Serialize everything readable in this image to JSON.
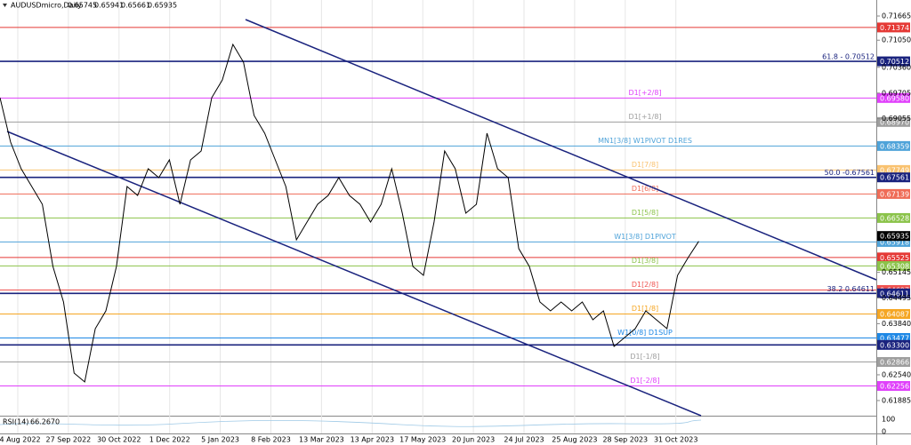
{
  "chart_data": {
    "type": "line",
    "header": {
      "symbol": "AUDUSDmicro,Daily",
      "open": 0.65745,
      "high": 0.65941,
      "low": 0.65661,
      "close": 0.65935
    },
    "series": [
      {
        "color": "#000000",
        "values": [
          0.69587,
          0.68457,
          0.6778,
          0.67328,
          0.66876,
          0.65295,
          0.64391,
          0.62584,
          0.62358,
          0.63714,
          0.64166,
          0.65295,
          0.67328,
          0.67102,
          0.6778,
          0.67554,
          0.68006,
          0.66876,
          0.68006,
          0.68232,
          0.69587,
          0.70039,
          0.70942,
          0.7049,
          0.69135,
          0.68683,
          0.68006,
          0.67328,
          0.65973,
          0.66425,
          0.66876,
          0.67102,
          0.67554,
          0.67102,
          0.66876,
          0.66425,
          0.66876,
          0.6778,
          0.6665,
          0.65295,
          0.65069,
          0.66425,
          0.68232,
          0.6778,
          0.6665,
          0.66876,
          0.68683,
          0.6778,
          0.67554,
          0.6575,
          0.65295,
          0.64391,
          0.64166,
          0.64391,
          0.64166,
          0.64391,
          0.6394,
          0.64166,
          0.63262,
          0.63488,
          0.63714,
          0.64166,
          0.6394,
          0.63714,
          0.65069,
          0.65521,
          0.65935
        ]
      }
    ],
    "date_labels": [
      "24 Aug 2022",
      "27 Sep 2022",
      "30 Oct 2022",
      "1 Dec 2022",
      "5 Jan 2023",
      "8 Feb 2023",
      "13 Mar 2023",
      "13 Apr 2023",
      "17 May 2023",
      "20 Jun 2023",
      "24 Jul 2023",
      "25 Aug 2023",
      "28 Sep 2023",
      "31 Oct 2023"
    ],
    "ylim": [
      0.615,
      0.72072
    ],
    "yticks": [
      {
        "value": 0.71665,
        "label": "0.71665"
      },
      {
        "value": 0.7105,
        "label": "0.71050"
      },
      {
        "value": 0.7036,
        "label": "0.70360"
      },
      {
        "value": 0.69705,
        "label": "0.69705"
      },
      {
        "value": 0.69055,
        "label": "0.69055"
      },
      {
        "value": 0.65145,
        "label": "0.65145"
      },
      {
        "value": 0.64495,
        "label": "0.64495"
      },
      {
        "value": 0.6384,
        "label": "0.63840"
      },
      {
        "value": 0.6254,
        "label": "0.62540"
      },
      {
        "value": 0.61885,
        "label": "0.61885"
      }
    ],
    "levels": [
      {
        "price": 0.71374,
        "price_label": "0.71374",
        "color": "#e53935"
      },
      {
        "price": 0.70512,
        "price_label": "0.70512",
        "color": "#1a237e",
        "text": "61.8 - 0.70512"
      },
      {
        "price": 0.6958,
        "price_label": "0.69580",
        "color": "#e040fb",
        "text": "D1[+2/8]"
      },
      {
        "price": 0.6897,
        "price_label": "0.68970",
        "color": "#9e9e9e",
        "text": "D1[+1/8]"
      },
      {
        "price": 0.68359,
        "price_label": "0.68359",
        "color": "#4fa3d9",
        "text": "MN1[3/8] W1PIVOT D1RES"
      },
      {
        "price": 0.67749,
        "price_label": "0.67749",
        "color": "#f9c270",
        "text": "D1[7/8]"
      },
      {
        "price": 0.67561,
        "price_label": "0.67561",
        "color": "#1a237e",
        "text": "50.0 -0.67561"
      },
      {
        "price": 0.67139,
        "price_label": "0.67139",
        "color": "#ef6c57",
        "text": "D1[6/8]"
      },
      {
        "price": 0.66528,
        "price_label": "0.66528",
        "color": "#8bc34a",
        "text": "D1[5/8]"
      },
      {
        "price": 0.65918,
        "price_label": "0.65918",
        "color": "#4fa3d9",
        "text": "W1[3/8] D1PIVOT"
      },
      {
        "price": 0.65525,
        "price_label": "0.65525",
        "color": "#e53935"
      },
      {
        "price": 0.65308,
        "price_label": "0.65308",
        "color": "#8bc34a",
        "text": "D1[3/8]"
      },
      {
        "price": 0.64697,
        "price_label": "0.64697",
        "color": "#ef5350",
        "text": "D1[2/8]"
      },
      {
        "price": 0.64611,
        "price_label": "0.64611",
        "color": "#1a237e",
        "text": "38.2 0.64611"
      },
      {
        "price": 0.64087,
        "price_label": "0.64087",
        "color": "#f5a623",
        "text": "D1[1/8]"
      },
      {
        "price": 0.63477,
        "price_label": "0.63477",
        "color": "#1e88e5",
        "text": "W1[0/8] D1SUP"
      },
      {
        "price": 0.633,
        "price_label": "0.63300",
        "color": "#1a237e"
      },
      {
        "price": 0.62866,
        "price_label": "0.62866",
        "color": "#9e9e9e",
        "text": "D1[-1/8]"
      },
      {
        "price": 0.62256,
        "price_label": "0.62256",
        "color": "#e040fb",
        "text": "D1[-2/8]"
      }
    ],
    "rsi": {
      "name": "RSI(14)",
      "value": 66.267,
      "value_label": "66.2670",
      "ylim": [
        0,
        100
      ],
      "yticks": [
        100,
        0
      ]
    }
  }
}
